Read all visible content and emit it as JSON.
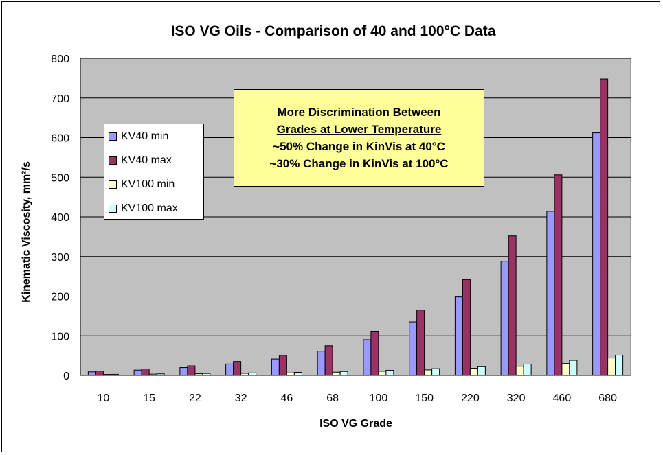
{
  "chart_data": {
    "type": "bar",
    "title": "ISO VG Oils - Comparison of 40 and 100°C Data",
    "xlabel": "ISO VG Grade",
    "ylabel": "Kinematic Viscosity, mm²/s",
    "ylim": [
      0,
      800
    ],
    "yticks": [
      0,
      100,
      200,
      300,
      400,
      500,
      600,
      700,
      800
    ],
    "grid": true,
    "legend_position": "left",
    "categories": [
      "10",
      "15",
      "22",
      "32",
      "46",
      "68",
      "100",
      "150",
      "220",
      "320",
      "460",
      "680"
    ],
    "series": [
      {
        "name": "KV40 min",
        "color": "#9999ff",
        "values": [
          9,
          13.5,
          19.8,
          28.8,
          41.4,
          61.2,
          90,
          135,
          198,
          288,
          414,
          612
        ]
      },
      {
        "name": "KV40 max",
        "color": "#993366",
        "values": [
          11,
          16.5,
          24.2,
          35.2,
          50.6,
          74.8,
          110,
          165,
          242,
          352,
          506,
          748
        ]
      },
      {
        "name": "KV100 min",
        "color": "#ffffcc",
        "values": [
          2.4,
          3.2,
          4.1,
          5.2,
          6.4,
          8.2,
          10.5,
          14,
          18,
          23,
          30,
          44
        ]
      },
      {
        "name": "KV100 max",
        "color": "#ccffff",
        "values": [
          2.8,
          3.8,
          4.9,
          6.3,
          7.8,
          10,
          12.8,
          17,
          22,
          28.5,
          38,
          51
        ]
      }
    ],
    "annotation": {
      "lines": [
        "More Discrimination Between",
        "Grades at Lower Temperature",
        "~50%  Change in KinVis at 40°C",
        "~30%  Change in KinVis at 100°C"
      ]
    }
  }
}
